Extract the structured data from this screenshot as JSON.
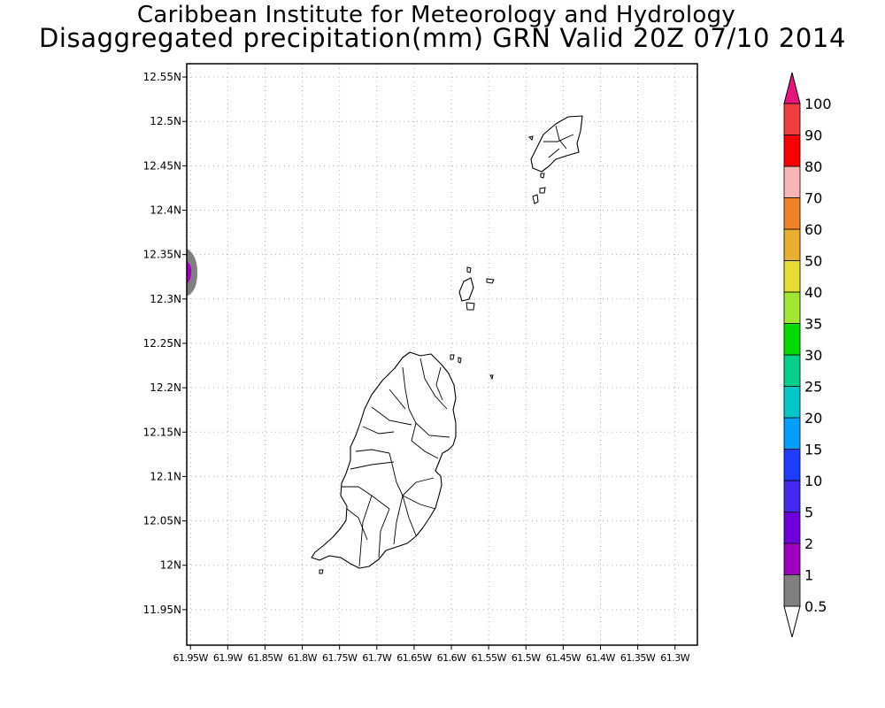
{
  "title": {
    "line1": "Caribbean Institute for Meteorology and Hydrology",
    "line2": "Disaggregated precipitation(mm) GRN Valid 20Z 07/10 2014"
  },
  "map": {
    "lon_range": [
      -61.955,
      -61.27
    ],
    "lat_range": [
      11.91,
      12.565
    ],
    "lat_ticks": [
      {
        "value": 12.55,
        "label": "12.55N"
      },
      {
        "value": 12.5,
        "label": "12.5N"
      },
      {
        "value": 12.45,
        "label": "12.45N"
      },
      {
        "value": 12.4,
        "label": "12.4N"
      },
      {
        "value": 12.35,
        "label": "12.35N"
      },
      {
        "value": 12.3,
        "label": "12.3N"
      },
      {
        "value": 12.25,
        "label": "12.25N"
      },
      {
        "value": 12.2,
        "label": "12.2N"
      },
      {
        "value": 12.15,
        "label": "12.15N"
      },
      {
        "value": 12.1,
        "label": "12.1N"
      },
      {
        "value": 12.05,
        "label": "12.05N"
      },
      {
        "value": 12.0,
        "label": "12N"
      },
      {
        "value": 11.95,
        "label": "11.95N"
      }
    ],
    "lon_ticks": [
      {
        "value": -61.95,
        "label": "61.95W"
      },
      {
        "value": -61.9,
        "label": "61.9W"
      },
      {
        "value": -61.85,
        "label": "61.85W"
      },
      {
        "value": -61.8,
        "label": "61.8W"
      },
      {
        "value": -61.75,
        "label": "61.75W"
      },
      {
        "value": -61.7,
        "label": "61.7W"
      },
      {
        "value": -61.65,
        "label": "61.65W"
      },
      {
        "value": -61.6,
        "label": "61.6W"
      },
      {
        "value": -61.55,
        "label": "61.55W"
      },
      {
        "value": -61.5,
        "label": "61.5W"
      },
      {
        "value": -61.45,
        "label": "61.45W"
      },
      {
        "value": -61.4,
        "label": "61.4W"
      },
      {
        "value": -61.35,
        "label": "61.35W"
      },
      {
        "value": -61.3,
        "label": "61.3W"
      }
    ],
    "grid": "dotted",
    "places": [
      "Grenada",
      "Carriacou",
      "Petite Martinique",
      "Ronde Island"
    ],
    "precip_patch": {
      "lon": -61.955,
      "lat": 12.33,
      "outer_class": "0.5-1",
      "inner_class": "1-2"
    }
  },
  "colorbar": {
    "orientation": "vertical",
    "min_label": "0.5",
    "levels": [
      {
        "label": "1",
        "color": "#808080"
      },
      {
        "label": "2",
        "color": "#a000c0"
      },
      {
        "label": "5",
        "color": "#6e00dc"
      },
      {
        "label": "10",
        "color": "#4628f0"
      },
      {
        "label": "15",
        "color": "#1e3cff"
      },
      {
        "label": "20",
        "color": "#00a0ff"
      },
      {
        "label": "25",
        "color": "#00c8c8"
      },
      {
        "label": "30",
        "color": "#00d28c"
      },
      {
        "label": "35",
        "color": "#00dc00"
      },
      {
        "label": "40",
        "color": "#a0e632"
      },
      {
        "label": "50",
        "color": "#e6dc32"
      },
      {
        "label": "60",
        "color": "#e6af2d"
      },
      {
        "label": "70",
        "color": "#f08228"
      },
      {
        "label": "80",
        "color": "#fab4b4"
      },
      {
        "label": "90",
        "color": "#fa0000"
      },
      {
        "label": "100",
        "color": "#f03c3c"
      }
    ],
    "over_color": "#e6147d",
    "under_color": "#ffffff"
  }
}
